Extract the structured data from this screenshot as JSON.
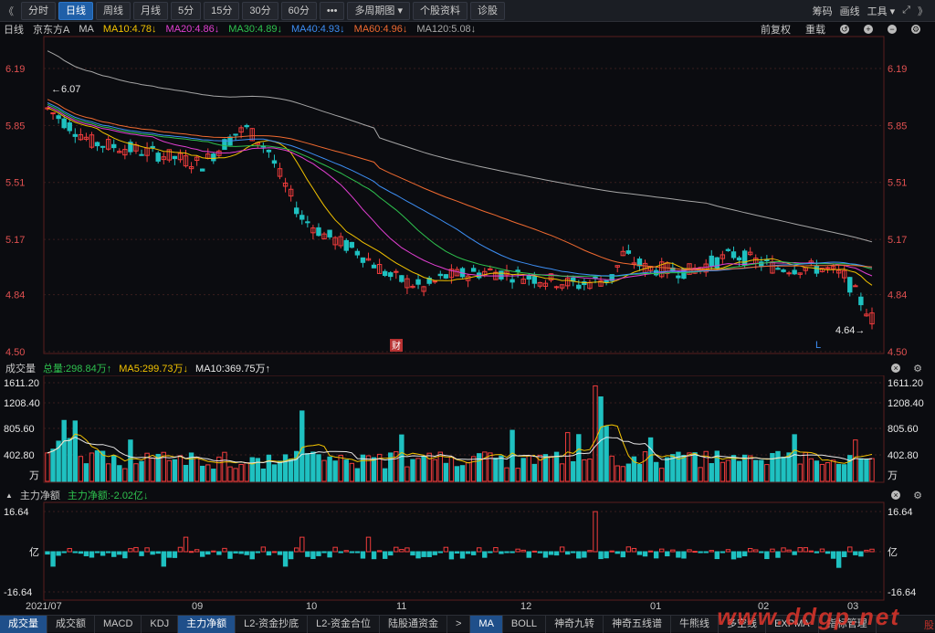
{
  "toolbar": {
    "back": "《",
    "buttons": [
      "分时",
      "日线",
      "周线",
      "月线",
      "5分",
      "15分",
      "30分",
      "60分",
      "•••",
      "多周期图 ▾",
      "个股资料",
      "诊股"
    ],
    "active_index": 1,
    "right": [
      "筹码",
      "画线",
      "工具 ▾"
    ]
  },
  "info": {
    "period": "日线",
    "name": "京东方A",
    "ma_label": "MA",
    "ma": [
      {
        "text": "MA10:4.78↓",
        "color": "#f2c200"
      },
      {
        "text": "MA20:4.86↓",
        "color": "#e23fd2"
      },
      {
        "text": "MA30:4.89↓",
        "color": "#2ec24e"
      },
      {
        "text": "MA40:4.93↓",
        "color": "#3d8ff5"
      },
      {
        "text": "MA60:4.96↓",
        "color": "#f06a30"
      },
      {
        "text": "MA120:5.08↓",
        "color": "#a6a6a6"
      }
    ],
    "right": [
      "前复权",
      "重载"
    ]
  },
  "chart_data": {
    "type": "candlestick",
    "price_ticks": [
      "6.19",
      "5.85",
      "5.51",
      "5.17",
      "4.84",
      "4.50"
    ],
    "max_label": "6.07",
    "min_label": "4.64",
    "markers": {
      "cai": "财",
      "l": "L"
    },
    "volume": {
      "label": "成交量",
      "total": "总量:298.84万↑",
      "ma5": "MA5:299.73万↓",
      "ma10": "MA10:369.75万↑",
      "ticks": [
        "1611.20",
        "1208.40",
        "805.60",
        "402.80",
        "万"
      ]
    },
    "flow": {
      "label": "主力净额",
      "value": "主力净额:-2.02亿↓",
      "ticks": [
        "16.64",
        "亿",
        "-16.64"
      ]
    },
    "x_labels": [
      "2021/07",
      "09",
      "10",
      "11",
      "12",
      "01",
      "02",
      "03"
    ]
  },
  "colors": {
    "up": "#f03c3c",
    "down": "#1fc1c1",
    "grid": "#3a1e1e"
  },
  "tabs": [
    "成交量",
    "成交额",
    "MACD",
    "KDJ",
    "主力净额",
    "L2-资金抄底",
    "L2-资金合位",
    "陆股通资金",
    ">",
    "MA",
    "BOLL",
    "神奇九转",
    "神奇五线谱",
    "牛熊线",
    "多空线",
    "EXPMA",
    "指标管理"
  ],
  "tabs_active": [
    0,
    4,
    9
  ],
  "watermark": "www.ddgp.net",
  "watermark_sub": "股"
}
